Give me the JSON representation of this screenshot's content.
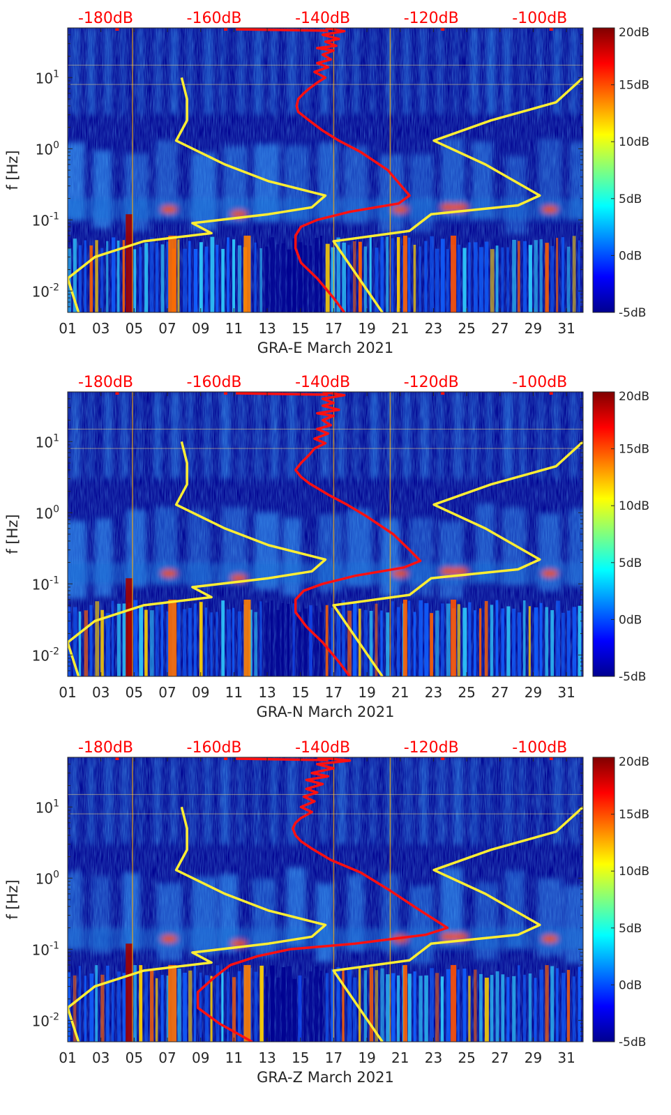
{
  "colors": {
    "background": "#00008f",
    "noise_band": "#1e74d8",
    "ambient": "#3aa6ff",
    "model_line": "#ff1010",
    "bounds_line": "#ffee33",
    "top_label": "#ff0000",
    "axis": "#262626"
  },
  "colormap": "jet",
  "chart_data": [
    {
      "type": "heatmap",
      "station": "GRA-E",
      "xlabel": "GRA-E March 2021",
      "ylabel": "f [Hz]",
      "x_ticks": [
        "01",
        "03",
        "05",
        "07",
        "09",
        "11",
        "13",
        "15",
        "17",
        "19",
        "21",
        "23",
        "25",
        "27",
        "29",
        "31"
      ],
      "y_ticks": [
        "10^-2",
        "10^-1",
        "10^0",
        "10^1"
      ],
      "y_scale": "log",
      "ylim": [
        0.005,
        50
      ],
      "xlim": [
        1,
        32
      ],
      "top_ticks": [
        "-180dB",
        "-160dB",
        "-140dB",
        "-120dB",
        "-100dB"
      ],
      "top_range": [
        -187,
        -92
      ],
      "colorbar": {
        "ticks": [
          "20dB",
          "15dB",
          "10dB",
          "5dB",
          "0dB",
          "-5dB"
        ],
        "range": [
          -5,
          20
        ]
      },
      "series": [
        {
          "color": "red",
          "points": [
            [
              -139.5,
              50
            ],
            [
              -136,
              45
            ],
            [
              -140,
              40
            ],
            [
              -137,
              35
            ],
            [
              -139.5,
              32
            ],
            [
              -137.5,
              28
            ],
            [
              -141,
              26
            ],
            [
              -138,
              24
            ],
            [
              -140,
              21
            ],
            [
              -138.5,
              18
            ],
            [
              -141,
              16
            ],
            [
              -139,
              14
            ],
            [
              -141.5,
              12
            ],
            [
              -139.5,
              10
            ],
            [
              -141,
              8.5
            ],
            [
              -142.5,
              7
            ],
            [
              -143.5,
              6
            ],
            [
              -144.5,
              5
            ],
            [
              -144.8,
              4
            ],
            [
              -144.5,
              3.3
            ],
            [
              -142.5,
              2.5
            ],
            [
              -140,
              1.8
            ],
            [
              -137,
              1.3
            ],
            [
              -133,
              0.9
            ],
            [
              -128,
              0.5
            ],
            [
              -125.5,
              0.3
            ],
            [
              -124,
              0.22
            ],
            [
              -126,
              0.17
            ],
            [
              -135,
              0.13
            ],
            [
              -141,
              0.1
            ],
            [
              -144,
              0.08
            ],
            [
              -145,
              0.06
            ],
            [
              -145,
              0.04
            ],
            [
              -144,
              0.025
            ],
            [
              -141,
              0.015
            ],
            [
              -138,
              0.008
            ],
            [
              -136,
              0.005
            ]
          ]
        },
        {
          "color": "yellow",
          "points": [
            [
              -166,
              10
            ],
            [
              -165,
              5
            ],
            [
              -165,
              2.5
            ],
            [
              -167,
              1.3
            ],
            [
              -158,
              0.6
            ],
            [
              -150,
              0.35
            ],
            [
              -139.5,
              0.22
            ],
            [
              -142,
              0.15
            ],
            [
              -150,
              0.12
            ],
            [
              -164,
              0.09
            ],
            [
              -160.5,
              0.065
            ],
            [
              -173,
              0.05
            ],
            [
              -182,
              0.03
            ],
            [
              -187,
              0.015
            ],
            [
              -185,
              0.005
            ]
          ]
        },
        {
          "color": "yellow",
          "points": [
            [
              -92,
              10
            ],
            [
              -97,
              4.5
            ],
            [
              -109,
              2.5
            ],
            [
              -119.5,
              1.3
            ],
            [
              -110,
              0.6
            ],
            [
              -100,
              0.22
            ],
            [
              -104,
              0.16
            ],
            [
              -120,
              0.12
            ],
            [
              -124,
              0.07
            ],
            [
              -138,
              0.05
            ],
            [
              -129,
              0.005
            ]
          ]
        }
      ]
    },
    {
      "type": "heatmap",
      "station": "GRA-N",
      "xlabel": "GRA-N March 2021",
      "ylabel": "f [Hz]",
      "x_ticks": [
        "01",
        "03",
        "05",
        "07",
        "09",
        "11",
        "13",
        "15",
        "17",
        "19",
        "21",
        "23",
        "25",
        "27",
        "29",
        "31"
      ],
      "y_ticks": [
        "10^-2",
        "10^-1",
        "10^0",
        "10^1"
      ],
      "y_scale": "log",
      "ylim": [
        0.005,
        50
      ],
      "xlim": [
        1,
        32
      ],
      "top_ticks": [
        "-180dB",
        "-160dB",
        "-140dB",
        "-120dB",
        "-100dB"
      ],
      "top_range": [
        -187,
        -92
      ],
      "colorbar": {
        "ticks": [
          "20dB",
          "15dB",
          "10dB",
          "5dB",
          "0dB",
          "-5dB"
        ],
        "range": [
          -5,
          20
        ]
      },
      "series": [
        {
          "color": "red",
          "points": [
            [
              -140,
              50
            ],
            [
              -136,
              45
            ],
            [
              -140,
              40
            ],
            [
              -138,
              35
            ],
            [
              -140,
              32
            ],
            [
              -137,
              28
            ],
            [
              -141,
              25
            ],
            [
              -138,
              23
            ],
            [
              -140,
              20
            ],
            [
              -138.5,
              17
            ],
            [
              -141,
              15
            ],
            [
              -139,
              13
            ],
            [
              -141.5,
              11
            ],
            [
              -139.5,
              9.5
            ],
            [
              -141.5,
              8
            ],
            [
              -142.5,
              6.5
            ],
            [
              -144,
              5
            ],
            [
              -145,
              4
            ],
            [
              -144,
              3.2
            ],
            [
              -142.5,
              2.6
            ],
            [
              -139,
              1.8
            ],
            [
              -135.5,
              1.3
            ],
            [
              -132,
              0.9
            ],
            [
              -127,
              0.5
            ],
            [
              -124,
              0.3
            ],
            [
              -122,
              0.21
            ],
            [
              -125,
              0.17
            ],
            [
              -134,
              0.13
            ],
            [
              -140,
              0.1
            ],
            [
              -143.5,
              0.08
            ],
            [
              -145,
              0.06
            ],
            [
              -145,
              0.04
            ],
            [
              -143,
              0.025
            ],
            [
              -140,
              0.015
            ],
            [
              -137,
              0.008
            ],
            [
              -135,
              0.005
            ]
          ]
        },
        {
          "color": "yellow",
          "points": [
            [
              -166,
              10
            ],
            [
              -165,
              5
            ],
            [
              -165,
              2.5
            ],
            [
              -167,
              1.3
            ],
            [
              -158,
              0.6
            ],
            [
              -150,
              0.35
            ],
            [
              -139.5,
              0.22
            ],
            [
              -142,
              0.15
            ],
            [
              -150,
              0.12
            ],
            [
              -164,
              0.09
            ],
            [
              -160.5,
              0.065
            ],
            [
              -173,
              0.05
            ],
            [
              -182,
              0.03
            ],
            [
              -187,
              0.015
            ],
            [
              -185,
              0.005
            ]
          ]
        },
        {
          "color": "yellow",
          "points": [
            [
              -92,
              10
            ],
            [
              -97,
              4.5
            ],
            [
              -109,
              2.5
            ],
            [
              -119.5,
              1.3
            ],
            [
              -110,
              0.6
            ],
            [
              -100,
              0.22
            ],
            [
              -104,
              0.16
            ],
            [
              -120,
              0.12
            ],
            [
              -124,
              0.07
            ],
            [
              -138,
              0.05
            ],
            [
              -129,
              0.005
            ]
          ]
        }
      ]
    },
    {
      "type": "heatmap",
      "station": "GRA-Z",
      "xlabel": "GRA-Z March 2021",
      "ylabel": "f [Hz]",
      "x_ticks": [
        "01",
        "03",
        "05",
        "07",
        "09",
        "11",
        "13",
        "15",
        "17",
        "19",
        "21",
        "23",
        "25",
        "27",
        "29",
        "31"
      ],
      "y_ticks": [
        "10^-2",
        "10^-1",
        "10^0",
        "10^1"
      ],
      "y_scale": "log",
      "ylim": [
        0.005,
        50
      ],
      "xlim": [
        1,
        32
      ],
      "top_ticks": [
        "-180dB",
        "-160dB",
        "-140dB",
        "-120dB",
        "-100dB"
      ],
      "top_range": [
        -187,
        -92
      ],
      "colorbar": {
        "ticks": [
          "20dB",
          "15dB",
          "10dB",
          "5dB",
          "0dB",
          "-5dB"
        ],
        "range": [
          -5,
          20
        ]
      },
      "series": [
        {
          "color": "red",
          "points": [
            [
              -141,
              50
            ],
            [
              -135,
              45
            ],
            [
              -141,
              40
            ],
            [
              -138,
              35
            ],
            [
              -142,
              30
            ],
            [
              -139,
              27
            ],
            [
              -143,
              24
            ],
            [
              -140,
              21
            ],
            [
              -143,
              18
            ],
            [
              -141,
              16
            ],
            [
              -143.5,
              14
            ],
            [
              -141.5,
              12
            ],
            [
              -144,
              10
            ],
            [
              -142,
              8.5
            ],
            [
              -144,
              7
            ],
            [
              -145,
              6
            ],
            [
              -145.5,
              5
            ],
            [
              -145,
              4
            ],
            [
              -144,
              3.3
            ],
            [
              -142,
              2.6
            ],
            [
              -138.5,
              1.8
            ],
            [
              -133,
              1.2
            ],
            [
              -128,
              0.7
            ],
            [
              -122,
              0.35
            ],
            [
              -117,
              0.2
            ],
            [
              -121,
              0.16
            ],
            [
              -134,
              0.12
            ],
            [
              -146,
              0.1
            ],
            [
              -152,
              0.08
            ],
            [
              -157,
              0.06
            ],
            [
              -160,
              0.04
            ],
            [
              -163,
              0.025
            ],
            [
              -163,
              0.015
            ],
            [
              -159,
              0.009
            ],
            [
              -153,
              0.005
            ]
          ]
        },
        {
          "color": "yellow",
          "points": [
            [
              -166,
              10
            ],
            [
              -165,
              5
            ],
            [
              -165,
              2.5
            ],
            [
              -167,
              1.3
            ],
            [
              -158,
              0.6
            ],
            [
              -150,
              0.35
            ],
            [
              -139.5,
              0.22
            ],
            [
              -142,
              0.15
            ],
            [
              -150,
              0.12
            ],
            [
              -164,
              0.09
            ],
            [
              -160.5,
              0.065
            ],
            [
              -173,
              0.05
            ],
            [
              -182,
              0.03
            ],
            [
              -187,
              0.015
            ],
            [
              -185,
              0.005
            ]
          ]
        },
        {
          "color": "yellow",
          "points": [
            [
              -92,
              10
            ],
            [
              -97,
              4.5
            ],
            [
              -109,
              2.5
            ],
            [
              -119.5,
              1.3
            ],
            [
              -110,
              0.6
            ],
            [
              -100,
              0.22
            ],
            [
              -104,
              0.16
            ],
            [
              -120,
              0.12
            ],
            [
              -124,
              0.07
            ],
            [
              -138,
              0.05
            ],
            [
              -129,
              0.005
            ]
          ]
        }
      ]
    }
  ]
}
